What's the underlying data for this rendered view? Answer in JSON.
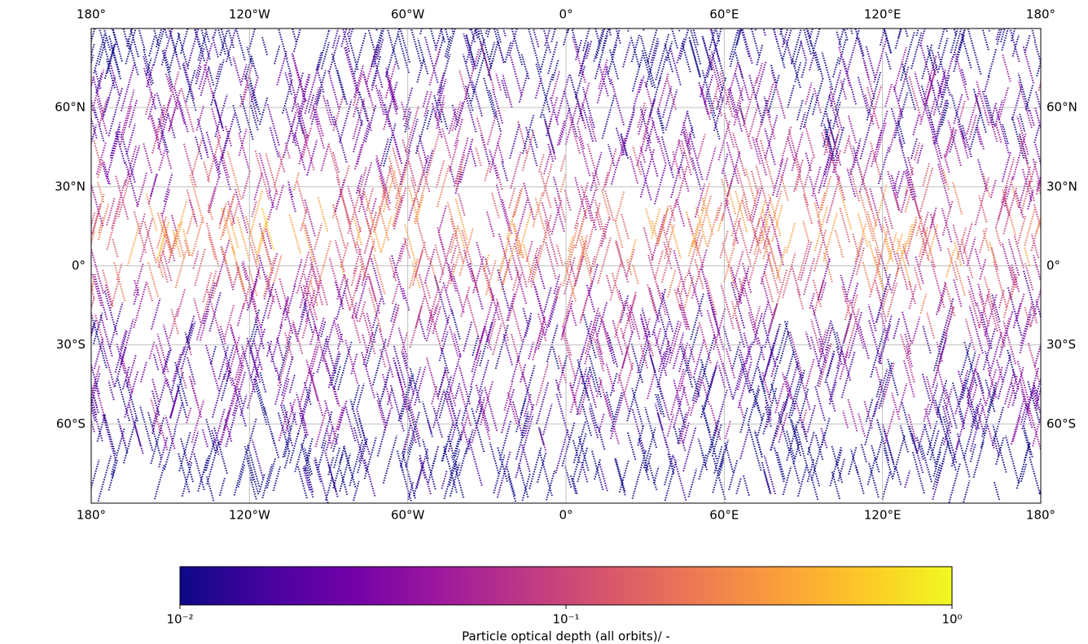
{
  "chart_data": {
    "type": "map",
    "projection": "plate-carree",
    "xlim": [
      -180,
      180
    ],
    "ylim": [
      -90,
      90
    ],
    "xticks": [
      {
        "value": -180,
        "label": "180°"
      },
      {
        "value": -120,
        "label": "120°W"
      },
      {
        "value": -60,
        "label": "60°W"
      },
      {
        "value": 0,
        "label": "0°"
      },
      {
        "value": 60,
        "label": "60°E"
      },
      {
        "value": 120,
        "label": "120°E"
      },
      {
        "value": 180,
        "label": "180°"
      }
    ],
    "yticks": [
      {
        "value": 60,
        "label": "60°N"
      },
      {
        "value": 30,
        "label": "30°N"
      },
      {
        "value": 0,
        "label": "0°"
      },
      {
        "value": -30,
        "label": "30°S"
      },
      {
        "value": -60,
        "label": "60°S"
      }
    ],
    "grid": true,
    "colorbar": {
      "label": "Particle optical depth (all orbits)/ -",
      "colormap": "plasma",
      "scale": "log",
      "lim": [
        0.01,
        1
      ],
      "ticks": [
        {
          "value": 0.01,
          "label": "10⁻²"
        },
        {
          "value": 0.1,
          "label": "10⁻¹"
        },
        {
          "value": 1,
          "label": "10⁰"
        }
      ]
    }
  }
}
